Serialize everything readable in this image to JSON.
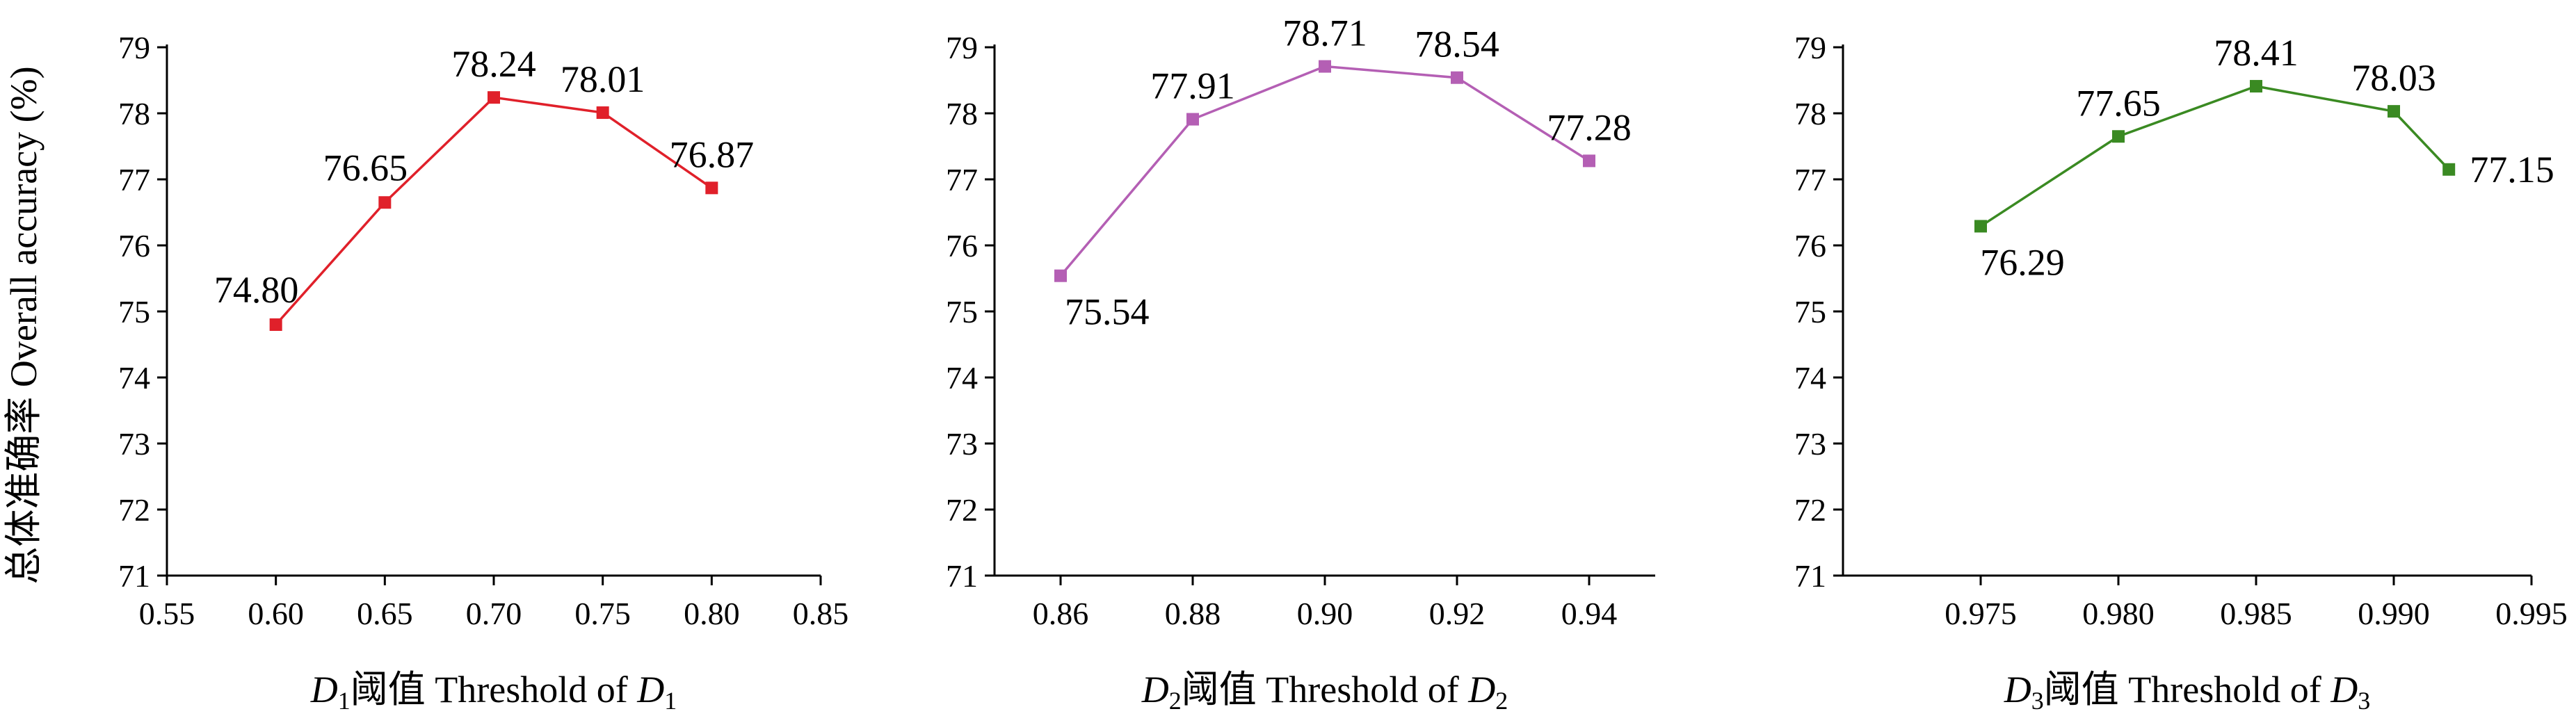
{
  "ylabel": "总体准确率 Overall accuracy (%)",
  "chart_data": [
    {
      "type": "line",
      "xlabel": {
        "pre": "D",
        "sub": "1",
        "mid": "阈值 Threshold of ",
        "post": "D",
        "sub2": "1"
      },
      "color": "#e0202a",
      "xlim": [
        0.55,
        0.85
      ],
      "xticks": [
        "0.55",
        "0.60",
        "0.65",
        "0.70",
        "0.75",
        "0.80",
        "0.85"
      ],
      "ylim": [
        71,
        79
      ],
      "yticks": [
        "71",
        "72",
        "73",
        "74",
        "75",
        "76",
        "77",
        "78",
        "79"
      ],
      "x": [
        0.6,
        0.65,
        0.7,
        0.75,
        0.8
      ],
      "y": [
        74.8,
        76.65,
        78.24,
        78.01,
        76.87
      ],
      "labels": [
        "74.80",
        "76.65",
        "78.24",
        "78.01",
        "76.87"
      ],
      "label_pos": [
        "above-left",
        "above-left",
        "above",
        "above",
        "above"
      ]
    },
    {
      "type": "line",
      "xlabel": {
        "pre": "D",
        "sub": "2",
        "mid": "阈值 Threshold of ",
        "post": "D",
        "sub2": "2"
      },
      "color": "#b45fb4",
      "xlim": [
        0.85,
        0.95
      ],
      "xticks": [
        "0.86",
        "0.88",
        "0.90",
        "0.92",
        "0.94"
      ],
      "ylim": [
        71,
        79
      ],
      "yticks": [
        "71",
        "72",
        "73",
        "74",
        "75",
        "76",
        "77",
        "78",
        "79"
      ],
      "x": [
        0.86,
        0.88,
        0.9,
        0.92,
        0.94
      ],
      "y": [
        75.54,
        77.91,
        78.71,
        78.54,
        77.28
      ],
      "labels": [
        "75.54",
        "77.91",
        "78.71",
        "78.54",
        "77.28"
      ],
      "label_pos": [
        "below",
        "above",
        "above",
        "above",
        "above"
      ]
    },
    {
      "type": "line",
      "xlabel": {
        "pre": "D",
        "sub": "3",
        "mid": "阈值 Threshold of ",
        "post": "D",
        "sub2": "3"
      },
      "color": "#3a8a22",
      "xlim": [
        0.97,
        0.995
      ],
      "xticks": [
        "0.975",
        "0.980",
        "0.985",
        "0.990",
        "0.995"
      ],
      "ylim": [
        71,
        79
      ],
      "yticks": [
        "71",
        "72",
        "73",
        "74",
        "75",
        "76",
        "77",
        "78",
        "79"
      ],
      "x": [
        0.975,
        0.98,
        0.985,
        0.99,
        0.992
      ],
      "y": [
        76.29,
        77.65,
        78.41,
        78.03,
        77.15
      ],
      "labels": [
        "76.29",
        "77.65",
        "78.41",
        "78.03",
        "77.15"
      ],
      "label_pos": [
        "below",
        "above",
        "above",
        "above",
        "right"
      ]
    }
  ]
}
